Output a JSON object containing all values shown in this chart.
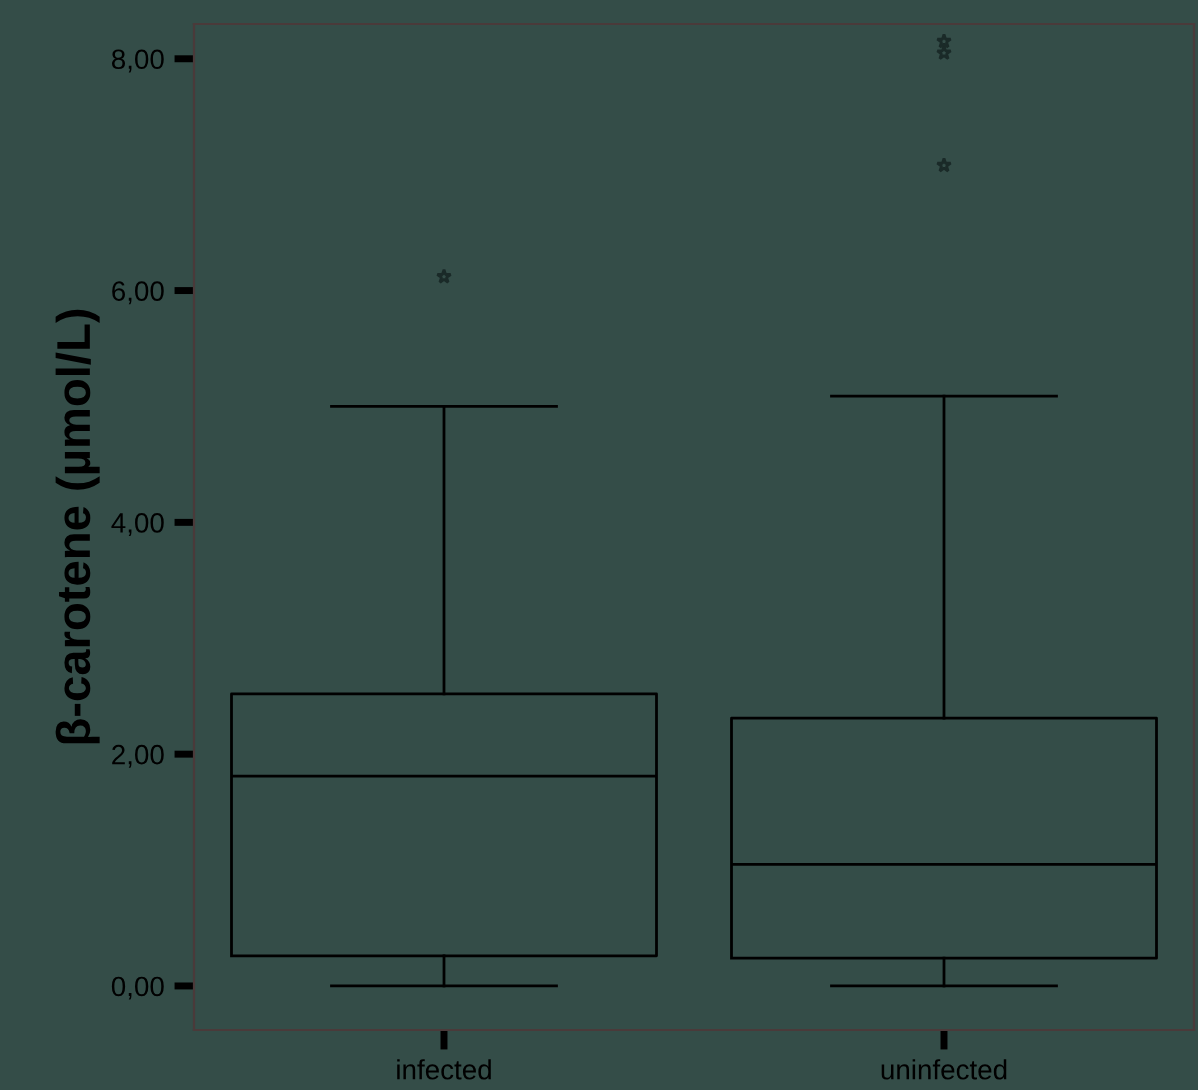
{
  "chart_data": {
    "type": "box",
    "ylabel": "β-carotene (µmol/L)",
    "categories": [
      "infected",
      "uninfected"
    ],
    "boxes": [
      {
        "low": 0.0,
        "q1": 0.26,
        "median": 1.81,
        "q3": 2.52,
        "high": 5.0,
        "outliers": [
          6.12
        ]
      },
      {
        "low": 0.0,
        "q1": 0.24,
        "median": 1.05,
        "q3": 2.31,
        "high": 5.09,
        "outliers": [
          7.08,
          8.05,
          8.15
        ]
      }
    ],
    "ylim": [
      -0.38,
      8.3
    ],
    "yticks": [
      {
        "value": 0,
        "label": "0,00"
      },
      {
        "value": 2,
        "label": "2,00"
      },
      {
        "value": 4,
        "label": "4,00"
      },
      {
        "value": 6,
        "label": "6,00"
      },
      {
        "value": 8,
        "label": "8,00"
      }
    ],
    "grid": false,
    "legend": false,
    "color": "#000000",
    "marker": "star"
  }
}
